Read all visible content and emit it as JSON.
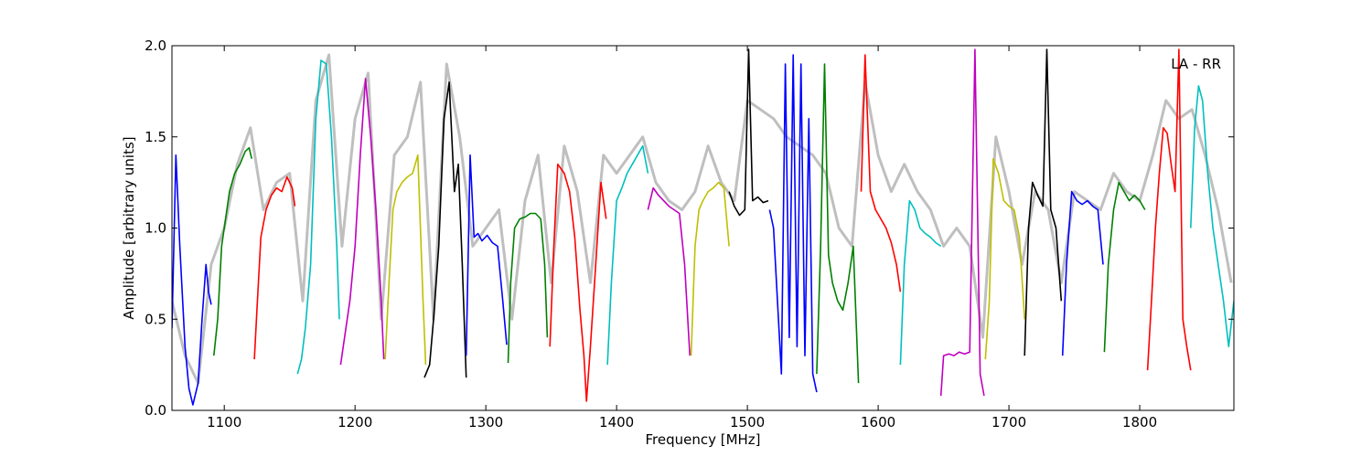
{
  "chart_data": {
    "type": "line",
    "title": "LA - RR",
    "xlabel": "Frequency [MHz]",
    "ylabel": "Amplitude [arbitrary units]",
    "xlim": [
      1060,
      1872
    ],
    "ylim": [
      0.0,
      2.0
    ],
    "x_ticks": [
      1100,
      1200,
      1300,
      1400,
      1500,
      1600,
      1700,
      1800
    ],
    "x_tick_labels": [
      "1100",
      "1200",
      "1300",
      "1400",
      "1500",
      "1600",
      "1700",
      "1800"
    ],
    "y_ticks": [
      0.0,
      0.5,
      1.0,
      1.5,
      2.0
    ],
    "y_tick_labels": [
      "0.0",
      "0.5",
      "1.0",
      "1.5",
      "2.0"
    ],
    "grid": false,
    "reference_color": "#bfbfbf",
    "series": [
      {
        "color": "#0000ff",
        "x": [
          1060,
          1063,
          1066,
          1070,
          1073,
          1076,
          1080,
          1083,
          1086,
          1088,
          1090
        ],
        "y": [
          0.45,
          1.4,
          0.9,
          0.35,
          0.12,
          0.03,
          0.15,
          0.5,
          0.8,
          0.65,
          0.58
        ]
      },
      {
        "color": "#008000",
        "x": [
          1092,
          1095,
          1098,
          1101,
          1104,
          1108,
          1112,
          1116,
          1119,
          1121
        ],
        "y": [
          0.3,
          0.5,
          0.9,
          1.05,
          1.2,
          1.3,
          1.35,
          1.42,
          1.44,
          1.38
        ]
      },
      {
        "color": "#ff0000",
        "x": [
          1123,
          1125,
          1128,
          1132,
          1136,
          1140,
          1144,
          1148,
          1152,
          1154
        ],
        "y": [
          0.28,
          0.55,
          0.95,
          1.1,
          1.18,
          1.22,
          1.2,
          1.28,
          1.22,
          1.12
        ]
      },
      {
        "color": "#00bfbf",
        "x": [
          1156,
          1159,
          1162,
          1166,
          1170,
          1174,
          1178,
          1182,
          1186,
          1188
        ],
        "y": [
          0.2,
          0.28,
          0.45,
          0.8,
          1.6,
          1.92,
          1.9,
          1.5,
          0.9,
          0.5
        ]
      },
      {
        "color": "#bf00bf",
        "x": [
          1189,
          1192,
          1196,
          1200,
          1204,
          1208,
          1212,
          1216,
          1220,
          1222
        ],
        "y": [
          0.25,
          0.4,
          0.6,
          0.9,
          1.4,
          1.82,
          1.5,
          1.1,
          0.6,
          0.28
        ]
      },
      {
        "color": "#bfbf00",
        "x": [
          1223,
          1226,
          1229,
          1232,
          1236,
          1240,
          1244,
          1248,
          1252,
          1254
        ],
        "y": [
          0.28,
          0.7,
          1.1,
          1.2,
          1.25,
          1.28,
          1.3,
          1.4,
          0.6,
          0.25
        ]
      },
      {
        "color": "#000000",
        "x": [
          1253,
          1257,
          1260,
          1264,
          1268,
          1272,
          1276,
          1279,
          1282,
          1285
        ],
        "y": [
          0.18,
          0.25,
          0.5,
          0.9,
          1.6,
          1.8,
          1.2,
          1.35,
          0.8,
          0.18
        ]
      },
      {
        "color": "#0000ff",
        "x": [
          1285,
          1288,
          1291,
          1294,
          1297,
          1301,
          1305,
          1309,
          1313,
          1316
        ],
        "y": [
          0.3,
          1.4,
          0.95,
          0.97,
          0.93,
          0.96,
          0.92,
          0.9,
          0.6,
          0.36
        ]
      },
      {
        "color": "#008000",
        "x": [
          1317,
          1319,
          1322,
          1326,
          1330,
          1334,
          1338,
          1342,
          1345,
          1347
        ],
        "y": [
          0.26,
          0.7,
          1.0,
          1.05,
          1.06,
          1.08,
          1.08,
          1.05,
          0.8,
          0.4
        ]
      },
      {
        "color": "#ff0000",
        "x": [
          1349,
          1352,
          1355,
          1360,
          1364,
          1368,
          1372,
          1375,
          1377,
          1380,
          1384,
          1388,
          1392
        ],
        "y": [
          0.35,
          0.9,
          1.35,
          1.3,
          1.2,
          0.95,
          0.55,
          0.3,
          0.05,
          0.35,
          0.8,
          1.25,
          1.05
        ]
      },
      {
        "color": "#00bfbf",
        "x": [
          1393,
          1396,
          1400,
          1404,
          1408,
          1412,
          1416,
          1420,
          1424
        ],
        "y": [
          0.25,
          0.7,
          1.15,
          1.22,
          1.3,
          1.35,
          1.4,
          1.45,
          1.3
        ]
      },
      {
        "color": "#bf00bf",
        "x": [
          1424,
          1428,
          1432,
          1436,
          1440,
          1444,
          1448,
          1452,
          1456
        ],
        "y": [
          1.1,
          1.22,
          1.18,
          1.15,
          1.12,
          1.1,
          1.08,
          0.8,
          0.3
        ]
      },
      {
        "color": "#bfbf00",
        "x": [
          1457,
          1460,
          1463,
          1466,
          1470,
          1474,
          1478,
          1482,
          1486
        ],
        "y": [
          0.3,
          0.9,
          1.1,
          1.15,
          1.2,
          1.22,
          1.25,
          1.22,
          0.9
        ]
      },
      {
        "color": "#000000",
        "x": [
          1486,
          1490,
          1494,
          1498,
          1501,
          1504,
          1508,
          1512,
          1516
        ],
        "y": [
          1.2,
          1.12,
          1.07,
          1.1,
          1.98,
          1.15,
          1.17,
          1.14,
          1.15
        ]
      },
      {
        "color": "#0000ff",
        "x": [
          1517,
          1520,
          1523,
          1526,
          1529,
          1532,
          1535,
          1538,
          1541,
          1544,
          1547,
          1550,
          1553
        ],
        "y": [
          1.1,
          1.0,
          0.6,
          0.2,
          1.9,
          0.4,
          1.95,
          0.35,
          1.9,
          0.3,
          1.6,
          0.2,
          0.1
        ]
      },
      {
        "color": "#008000",
        "x": [
          1553,
          1556,
          1559,
          1562,
          1565,
          1569,
          1573,
          1577,
          1581,
          1585
        ],
        "y": [
          0.2,
          0.9,
          1.9,
          0.85,
          0.7,
          0.6,
          0.55,
          0.7,
          0.9,
          0.15
        ]
      },
      {
        "color": "#ff0000",
        "x": [
          1587,
          1590,
          1594,
          1598,
          1602,
          1606,
          1610,
          1614,
          1617
        ],
        "y": [
          1.2,
          1.95,
          1.2,
          1.1,
          1.05,
          1.0,
          0.92,
          0.8,
          0.65
        ]
      },
      {
        "color": "#00bfbf",
        "x": [
          1617,
          1620,
          1624,
          1628,
          1632,
          1636,
          1640,
          1644,
          1648
        ],
        "y": [
          0.25,
          0.8,
          1.15,
          1.1,
          1.0,
          0.97,
          0.95,
          0.92,
          0.9
        ]
      },
      {
        "color": "#bf00bf",
        "x": [
          1648,
          1650,
          1654,
          1658,
          1662,
          1666,
          1670,
          1674,
          1678,
          1681
        ],
        "y": [
          0.08,
          0.3,
          0.31,
          0.3,
          0.32,
          0.31,
          0.32,
          1.98,
          0.2,
          0.08
        ]
      },
      {
        "color": "#bfbf00",
        "x": [
          1682,
          1685,
          1688,
          1692,
          1696,
          1700,
          1704,
          1708,
          1712
        ],
        "y": [
          0.28,
          0.6,
          1.38,
          1.3,
          1.15,
          1.12,
          1.1,
          0.95,
          0.5
        ]
      },
      {
        "color": "#000000",
        "x": [
          1712,
          1715,
          1718,
          1722,
          1726,
          1729,
          1732,
          1736,
          1740
        ],
        "y": [
          0.3,
          1.0,
          1.25,
          1.18,
          1.12,
          1.98,
          1.1,
          1.0,
          0.6
        ]
      },
      {
        "color": "#0000ff",
        "x": [
          1741,
          1744,
          1748,
          1752,
          1756,
          1760,
          1764,
          1768,
          1772
        ],
        "y": [
          0.3,
          0.8,
          1.2,
          1.15,
          1.13,
          1.15,
          1.12,
          1.1,
          0.8
        ]
      },
      {
        "color": "#008000",
        "x": [
          1773,
          1776,
          1780,
          1784,
          1788,
          1792,
          1796,
          1800,
          1804
        ],
        "y": [
          0.32,
          0.8,
          1.1,
          1.25,
          1.2,
          1.15,
          1.18,
          1.15,
          1.1
        ]
      },
      {
        "color": "#ff0000",
        "x": [
          1806,
          1809,
          1812,
          1815,
          1818,
          1821,
          1824,
          1827,
          1830,
          1833,
          1836,
          1839
        ],
        "y": [
          0.22,
          0.6,
          1.0,
          1.3,
          1.55,
          1.52,
          1.35,
          1.2,
          1.98,
          0.5,
          0.35,
          0.22
        ]
      },
      {
        "color": "#00bfbf",
        "x": [
          1839,
          1842,
          1845,
          1848,
          1852,
          1856,
          1860,
          1864,
          1868,
          1872
        ],
        "y": [
          1.0,
          1.55,
          1.78,
          1.7,
          1.3,
          1.0,
          0.8,
          0.6,
          0.35,
          0.6
        ]
      }
    ],
    "reference": {
      "x": [
        1060,
        1070,
        1080,
        1090,
        1100,
        1110,
        1120,
        1130,
        1140,
        1150,
        1160,
        1170,
        1180,
        1190,
        1200,
        1210,
        1220,
        1230,
        1240,
        1250,
        1260,
        1270,
        1280,
        1290,
        1300,
        1310,
        1320,
        1330,
        1340,
        1350,
        1360,
        1370,
        1380,
        1390,
        1400,
        1410,
        1420,
        1430,
        1440,
        1450,
        1460,
        1470,
        1480,
        1490,
        1500,
        1510,
        1520,
        1530,
        1540,
        1550,
        1560,
        1570,
        1580,
        1590,
        1600,
        1610,
        1620,
        1630,
        1640,
        1650,
        1660,
        1670,
        1680,
        1690,
        1700,
        1710,
        1720,
        1730,
        1740,
        1750,
        1760,
        1770,
        1780,
        1790,
        1800,
        1810,
        1820,
        1830,
        1840,
        1850,
        1860,
        1870
      ],
      "y": [
        0.6,
        0.3,
        0.15,
        0.8,
        1.0,
        1.35,
        1.55,
        1.1,
        1.25,
        1.3,
        0.6,
        1.7,
        1.95,
        0.9,
        1.6,
        1.85,
        0.5,
        1.4,
        1.5,
        1.8,
        0.5,
        1.9,
        1.5,
        0.9,
        1.0,
        1.1,
        0.5,
        1.15,
        1.4,
        0.7,
        1.45,
        1.2,
        0.7,
        1.4,
        1.3,
        1.4,
        1.5,
        1.25,
        1.15,
        1.1,
        1.2,
        1.45,
        1.25,
        1.15,
        1.7,
        1.65,
        1.6,
        1.5,
        1.45,
        1.4,
        1.3,
        1.0,
        0.9,
        1.8,
        1.4,
        1.2,
        1.35,
        1.2,
        1.1,
        0.9,
        1.0,
        0.9,
        0.4,
        1.5,
        1.2,
        0.8,
        1.2,
        1.1,
        0.7,
        1.2,
        1.15,
        1.1,
        1.3,
        1.2,
        1.15,
        1.4,
        1.7,
        1.6,
        1.65,
        1.4,
        1.1,
        0.7
      ]
    }
  }
}
